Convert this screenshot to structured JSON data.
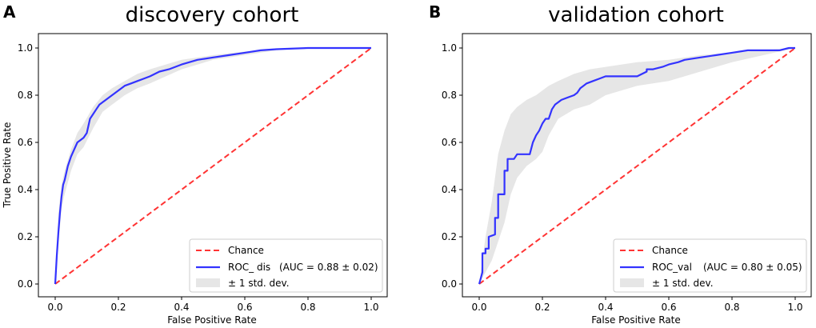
{
  "chart_data": [
    {
      "type": "line",
      "panel_label": "A",
      "title": "discovery cohort",
      "xlabel": "False Positive Rate",
      "ylabel": "True Positive Rate",
      "xlim": [
        0,
        1
      ],
      "ylim": [
        0,
        1
      ],
      "xticks": [
        "0.0",
        "0.2",
        "0.4",
        "0.6",
        "0.8",
        "1.0"
      ],
      "yticks": [
        "0.0",
        "0.2",
        "0.4",
        "0.6",
        "0.8",
        "1.0"
      ],
      "legend_position": "lower-right",
      "colors": {
        "chance": "#ff3333",
        "roc": "#3333ff",
        "band": "#e6e6e6"
      },
      "legend": [
        {
          "label": "Chance",
          "extra": ""
        },
        {
          "label": "ROC_ dis",
          "extra": "(AUC = 0.88 ± 0.02)"
        },
        {
          "label": "± 1 std. dev.",
          "extra": ""
        }
      ],
      "series": [
        {
          "name": "Chance",
          "x": [
            0,
            1
          ],
          "y": [
            0,
            1
          ]
        },
        {
          "name": "ROC_ dis",
          "x": [
            0,
            0.005,
            0.01,
            0.015,
            0.02,
            0.025,
            0.03,
            0.04,
            0.05,
            0.06,
            0.07,
            0.08,
            0.09,
            0.1,
            0.11,
            0.12,
            0.13,
            0.14,
            0.15,
            0.16,
            0.18,
            0.2,
            0.22,
            0.24,
            0.26,
            0.28,
            0.3,
            0.33,
            0.36,
            0.4,
            0.45,
            0.5,
            0.55,
            0.6,
            0.65,
            0.7,
            0.8,
            0.9,
            1.0
          ],
          "y": [
            0,
            0.12,
            0.22,
            0.3,
            0.37,
            0.42,
            0.44,
            0.5,
            0.54,
            0.57,
            0.6,
            0.61,
            0.62,
            0.64,
            0.7,
            0.72,
            0.74,
            0.76,
            0.77,
            0.78,
            0.8,
            0.82,
            0.84,
            0.85,
            0.86,
            0.87,
            0.88,
            0.9,
            0.91,
            0.93,
            0.95,
            0.96,
            0.97,
            0.98,
            0.99,
            0.995,
            1.0,
            1.0,
            1.0
          ]
        },
        {
          "name": "± 1 std. dev.",
          "x": [
            0,
            0.01,
            0.02,
            0.03,
            0.05,
            0.07,
            0.09,
            0.12,
            0.15,
            0.18,
            0.22,
            0.26,
            0.3,
            0.35,
            0.4,
            0.5,
            0.6,
            0.7,
            0.8,
            1.0
          ],
          "upper": [
            0,
            0.3,
            0.42,
            0.48,
            0.57,
            0.64,
            0.68,
            0.75,
            0.8,
            0.83,
            0.86,
            0.89,
            0.91,
            0.93,
            0.95,
            0.97,
            0.985,
            0.995,
            1.0,
            1.0
          ],
          "lower": [
            0,
            0.16,
            0.32,
            0.38,
            0.48,
            0.55,
            0.58,
            0.66,
            0.73,
            0.76,
            0.8,
            0.83,
            0.85,
            0.88,
            0.91,
            0.95,
            0.97,
            0.99,
            1.0,
            1.0
          ]
        }
      ]
    },
    {
      "type": "line",
      "panel_label": "B",
      "title": "validation cohort",
      "xlabel": "False Positive Rate",
      "ylabel": "",
      "xlim": [
        0,
        1
      ],
      "ylim": [
        0,
        1
      ],
      "xticks": [
        "0.0",
        "0.2",
        "0.4",
        "0.6",
        "0.8",
        "1.0"
      ],
      "yticks": [
        "0.0",
        "0.2",
        "0.4",
        "0.6",
        "0.8",
        "1.0"
      ],
      "legend_position": "lower-right",
      "colors": {
        "chance": "#ff3333",
        "roc": "#3333ff",
        "band": "#e6e6e6"
      },
      "legend": [
        {
          "label": "Chance",
          "extra": ""
        },
        {
          "label": "ROC_val",
          "extra": "(AUC = 0.80 ± 0.05)"
        },
        {
          "label": "± 1 std. dev.",
          "extra": ""
        }
      ],
      "series": [
        {
          "name": "Chance",
          "x": [
            0,
            1
          ],
          "y": [
            0,
            1
          ]
        },
        {
          "name": "ROC_val",
          "x": [
            0,
            0.01,
            0.01,
            0.02,
            0.02,
            0.03,
            0.03,
            0.05,
            0.05,
            0.06,
            0.06,
            0.08,
            0.08,
            0.09,
            0.09,
            0.1,
            0.11,
            0.12,
            0.14,
            0.16,
            0.17,
            0.18,
            0.19,
            0.2,
            0.21,
            0.22,
            0.23,
            0.24,
            0.26,
            0.28,
            0.3,
            0.31,
            0.32,
            0.33,
            0.34,
            0.36,
            0.38,
            0.4,
            0.4,
            0.5,
            0.53,
            0.53,
            0.55,
            0.58,
            0.6,
            0.63,
            0.65,
            0.7,
            0.75,
            0.8,
            0.85,
            0.95,
            0.98,
            1.0
          ],
          "y": [
            0,
            0.05,
            0.13,
            0.13,
            0.15,
            0.15,
            0.2,
            0.21,
            0.28,
            0.28,
            0.38,
            0.38,
            0.48,
            0.48,
            0.53,
            0.53,
            0.53,
            0.55,
            0.55,
            0.55,
            0.6,
            0.63,
            0.65,
            0.68,
            0.7,
            0.7,
            0.74,
            0.76,
            0.78,
            0.79,
            0.8,
            0.81,
            0.83,
            0.84,
            0.85,
            0.86,
            0.87,
            0.88,
            0.88,
            0.88,
            0.9,
            0.91,
            0.91,
            0.92,
            0.93,
            0.94,
            0.95,
            0.96,
            0.97,
            0.98,
            0.99,
            0.99,
            1.0,
            1.0
          ]
        },
        {
          "name": "± 1 std. dev.",
          "x": [
            0,
            0.02,
            0.04,
            0.06,
            0.08,
            0.1,
            0.12,
            0.15,
            0.18,
            0.2,
            0.22,
            0.25,
            0.3,
            0.35,
            0.4,
            0.5,
            0.6,
            0.7,
            0.8,
            0.9,
            1.0
          ],
          "upper": [
            0,
            0.2,
            0.35,
            0.55,
            0.65,
            0.72,
            0.75,
            0.78,
            0.8,
            0.82,
            0.84,
            0.86,
            0.89,
            0.91,
            0.92,
            0.94,
            0.95,
            0.97,
            0.98,
            0.99,
            1.0
          ],
          "lower": [
            0,
            0.05,
            0.1,
            0.18,
            0.26,
            0.38,
            0.45,
            0.5,
            0.53,
            0.56,
            0.63,
            0.7,
            0.74,
            0.76,
            0.8,
            0.84,
            0.86,
            0.9,
            0.94,
            0.97,
            1.0
          ]
        }
      ]
    }
  ]
}
